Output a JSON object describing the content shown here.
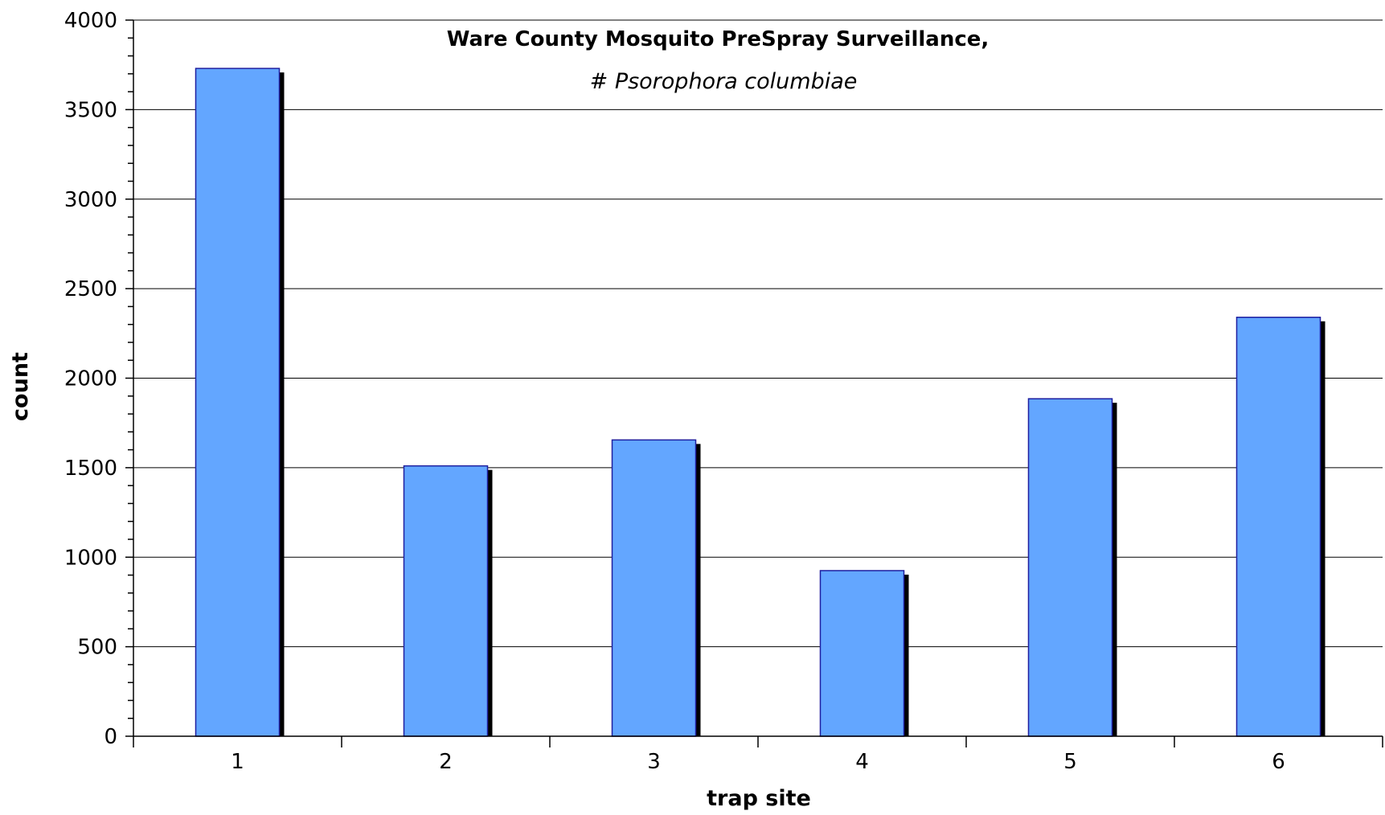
{
  "chart_data": {
    "type": "bar",
    "title": "Ware County Mosquito PreSpray Surveillance,",
    "subtitle": "# Psorophora columbiae",
    "xlabel": "trap site",
    "ylabel": "count",
    "categories": [
      "1",
      "2",
      "3",
      "4",
      "5",
      "6"
    ],
    "values": [
      3730,
      1510,
      1655,
      925,
      1885,
      2340
    ],
    "ylim": [
      0,
      4000
    ],
    "yticks": [
      0,
      500,
      1000,
      1500,
      2000,
      2500,
      3000,
      3500,
      4000
    ],
    "grid": true,
    "bar_color": "#63A6FF",
    "bar_edge_color": "#1F1FA0",
    "shadow_color": "#000000"
  }
}
